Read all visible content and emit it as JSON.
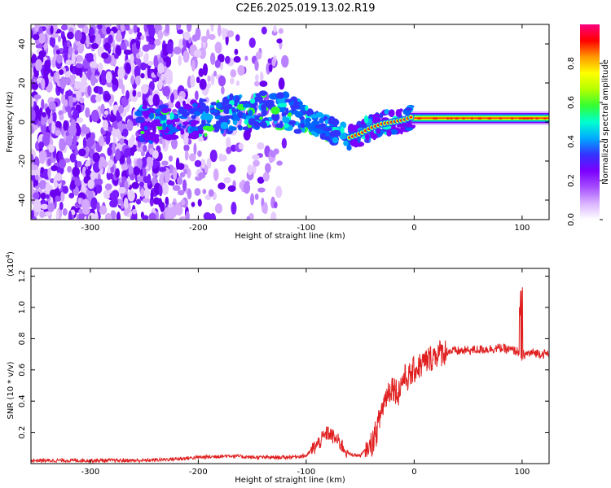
{
  "title": "C2E6.2025.019.13.02.R19",
  "colors": {
    "colorbar": [
      "#ffffff",
      "#d9b3ff",
      "#a64dff",
      "#7a00ff",
      "#3333ff",
      "#00aaff",
      "#00ffd0",
      "#33ff33",
      "#b3ff00",
      "#ffff00",
      "#ff9900",
      "#ff0000",
      "#ff0080"
    ],
    "snr_line": "#e02020"
  },
  "chart_data": [
    {
      "type": "heatmap",
      "xlabel": "Height of straight line (km)",
      "ylabel": "Frequency (Hz)",
      "xlim": [
        -355,
        125
      ],
      "ylim": [
        -50,
        50
      ],
      "xticks": [
        -300,
        -200,
        -100,
        0,
        100
      ],
      "yticks": [
        -40,
        -20,
        0,
        20,
        40
      ],
      "colorbar": {
        "label": "Normalized spectral amplitude",
        "range": [
          0,
          1
        ],
        "ticks": [
          "0.0",
          "0.2",
          "0.4",
          "0.6",
          "0.8"
        ]
      },
      "ridge": {
        "x": [
          -255,
          -220,
          -200,
          -180,
          -160,
          -140,
          -120,
          -100,
          -80,
          -60,
          -50,
          -40,
          -30,
          -20,
          -10,
          0,
          10,
          30,
          60,
          100,
          125
        ],
        "y": [
          -1,
          0,
          2,
          3,
          5,
          6,
          5,
          2,
          -3,
          -8,
          -6,
          -3,
          -1,
          0,
          1,
          3,
          2,
          2,
          2,
          2,
          2
        ]
      }
    },
    {
      "type": "line",
      "xlabel": "Height of straight line (km)",
      "ylabel": "SNR (10 * v/v)",
      "y_multiplier": "(x10",
      "y_multiplier_exp": "4",
      "y_multiplier_close": ")",
      "xlim": [
        -355,
        125
      ],
      "ylim": [
        0,
        1.25
      ],
      "xticks": [
        -300,
        -200,
        -100,
        0,
        100
      ],
      "yticks": [
        "0.2",
        "0.4",
        "0.6",
        "0.8",
        "1.0",
        "1.2"
      ],
      "series": [
        {
          "x": [
            -355,
            -300,
            -250,
            -220,
            -200,
            -170,
            -150,
            -120,
            -100,
            -90,
            -80,
            -70,
            -60,
            -50,
            -40,
            -35,
            -30,
            -25,
            -20,
            -15,
            -10,
            -5,
            0,
            10,
            20,
            30,
            40,
            60,
            80,
            95,
            100,
            103,
            110,
            125
          ],
          "y": [
            0.02,
            0.02,
            0.02,
            0.03,
            0.04,
            0.05,
            0.04,
            0.04,
            0.05,
            0.12,
            0.2,
            0.14,
            0.06,
            0.05,
            0.12,
            0.2,
            0.35,
            0.45,
            0.5,
            0.45,
            0.55,
            0.55,
            0.6,
            0.65,
            0.7,
            0.72,
            0.72,
            0.73,
            0.74,
            0.72,
            0.7,
            0.7,
            0.71,
            0.7
          ]
        }
      ]
    }
  ]
}
